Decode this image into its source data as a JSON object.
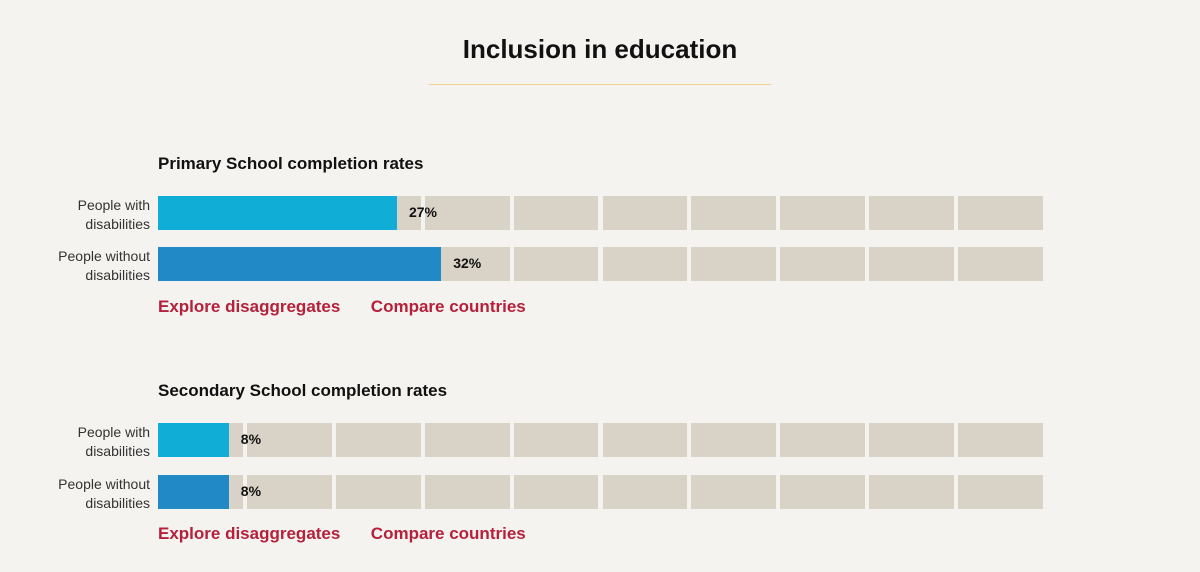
{
  "page": {
    "title": "Inclusion in education"
  },
  "colors": {
    "with_disabilities": "#10aed6",
    "without_disabilities": "#2089c6",
    "track": "#d9d2c6",
    "link": "#b5203a",
    "rule": "#f0cf8a"
  },
  "links": {
    "explore": "Explore disaggregates",
    "compare": "Compare countries"
  },
  "chart_data": [
    {
      "type": "bar",
      "orientation": "horizontal",
      "title": "Primary School completion rates",
      "categories": [
        "People with disabilities",
        "People without disabilities"
      ],
      "values": [
        27,
        32
      ],
      "value_labels": [
        "27%",
        "32%"
      ],
      "xlim": [
        0,
        100
      ],
      "grid_segments": 10
    },
    {
      "type": "bar",
      "orientation": "horizontal",
      "title": "Secondary School completion rates",
      "categories": [
        "People with disabilities",
        "People without disabilities"
      ],
      "values": [
        8,
        8
      ],
      "value_labels": [
        "8%",
        "8%"
      ],
      "xlim": [
        0,
        100
      ],
      "grid_segments": 10
    }
  ],
  "labels": {
    "with_line1": "People with",
    "with_line2": "disabilities",
    "without_line1": "People without",
    "without_line2": "disabilities"
  }
}
